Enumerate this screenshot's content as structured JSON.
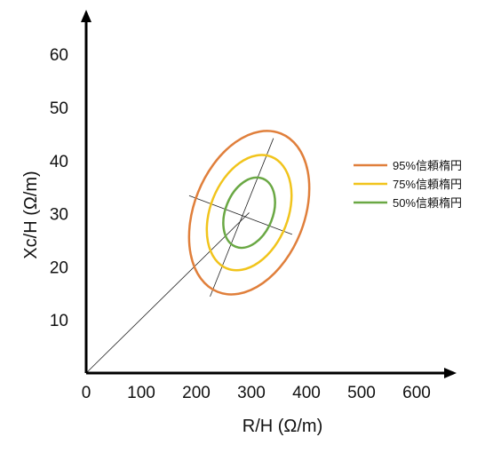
{
  "chart_data": {
    "type": "scatter",
    "title": "",
    "xlabel": "R/H (Ω/m)",
    "ylabel": "Xc/H (Ω/m)",
    "xlim": [
      0,
      650
    ],
    "ylim": [
      0,
      67
    ],
    "xticks": [
      0,
      100,
      200,
      300,
      400,
      500,
      600
    ],
    "yticks": [
      10,
      20,
      30,
      40,
      50,
      60
    ],
    "grid": false,
    "legend_position": "right",
    "center": {
      "x": 296,
      "y": 30.2
    },
    "principal_axis_major": {
      "from": {
        "x": 340,
        "y": 44.2
      },
      "to": {
        "x": 225,
        "y": 14.4
      }
    },
    "principal_axis_minor": {
      "from": {
        "x": 187,
        "y": 33.4
      },
      "to": {
        "x": 374,
        "y": 26.1
      }
    },
    "origin_line": {
      "from": {
        "x": 0,
        "y": 0
      },
      "to": {
        "x": 296,
        "y": 30.2
      }
    },
    "series": [
      {
        "name": "95%信頼楕円",
        "color": "#e07f3b",
        "semi_major_scale": 1.0,
        "semi_minor_scale": 1.0
      },
      {
        "name": "75%信頼楕円",
        "color": "#f1c41c",
        "semi_major_scale": 0.705,
        "semi_minor_scale": 0.705
      },
      {
        "name": "50%信頼楕円",
        "color": "#6aa844",
        "semi_major_scale": 0.43,
        "semi_minor_scale": 0.43
      }
    ]
  }
}
